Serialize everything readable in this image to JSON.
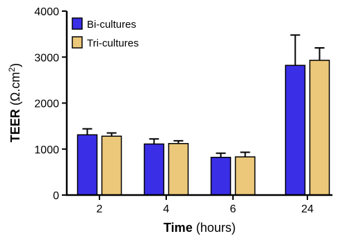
{
  "chart_data": {
    "type": "bar",
    "categories": [
      "2",
      "4",
      "6",
      "24"
    ],
    "series": [
      {
        "name": "Bi-cultures",
        "color": "#3a2ee6",
        "values": [
          1310,
          1110,
          820,
          2820
        ],
        "errors": [
          130,
          110,
          90,
          660
        ]
      },
      {
        "name": "Tri-cultures",
        "color": "#ecc87a",
        "values": [
          1280,
          1120,
          830,
          2930
        ],
        "errors": [
          70,
          60,
          100,
          270
        ]
      }
    ],
    "ylim": [
      0,
      4000
    ],
    "yticks": [
      "0",
      "1000",
      "2000",
      "3000",
      "4000"
    ],
    "xlabel": {
      "bold": "Time",
      "rest": " (hours)"
    },
    "ylabel": {
      "bold": "TEER",
      "rest": " (Ω.cm",
      "sup": "2",
      "close": ")"
    },
    "legend_position": "top-left"
  }
}
